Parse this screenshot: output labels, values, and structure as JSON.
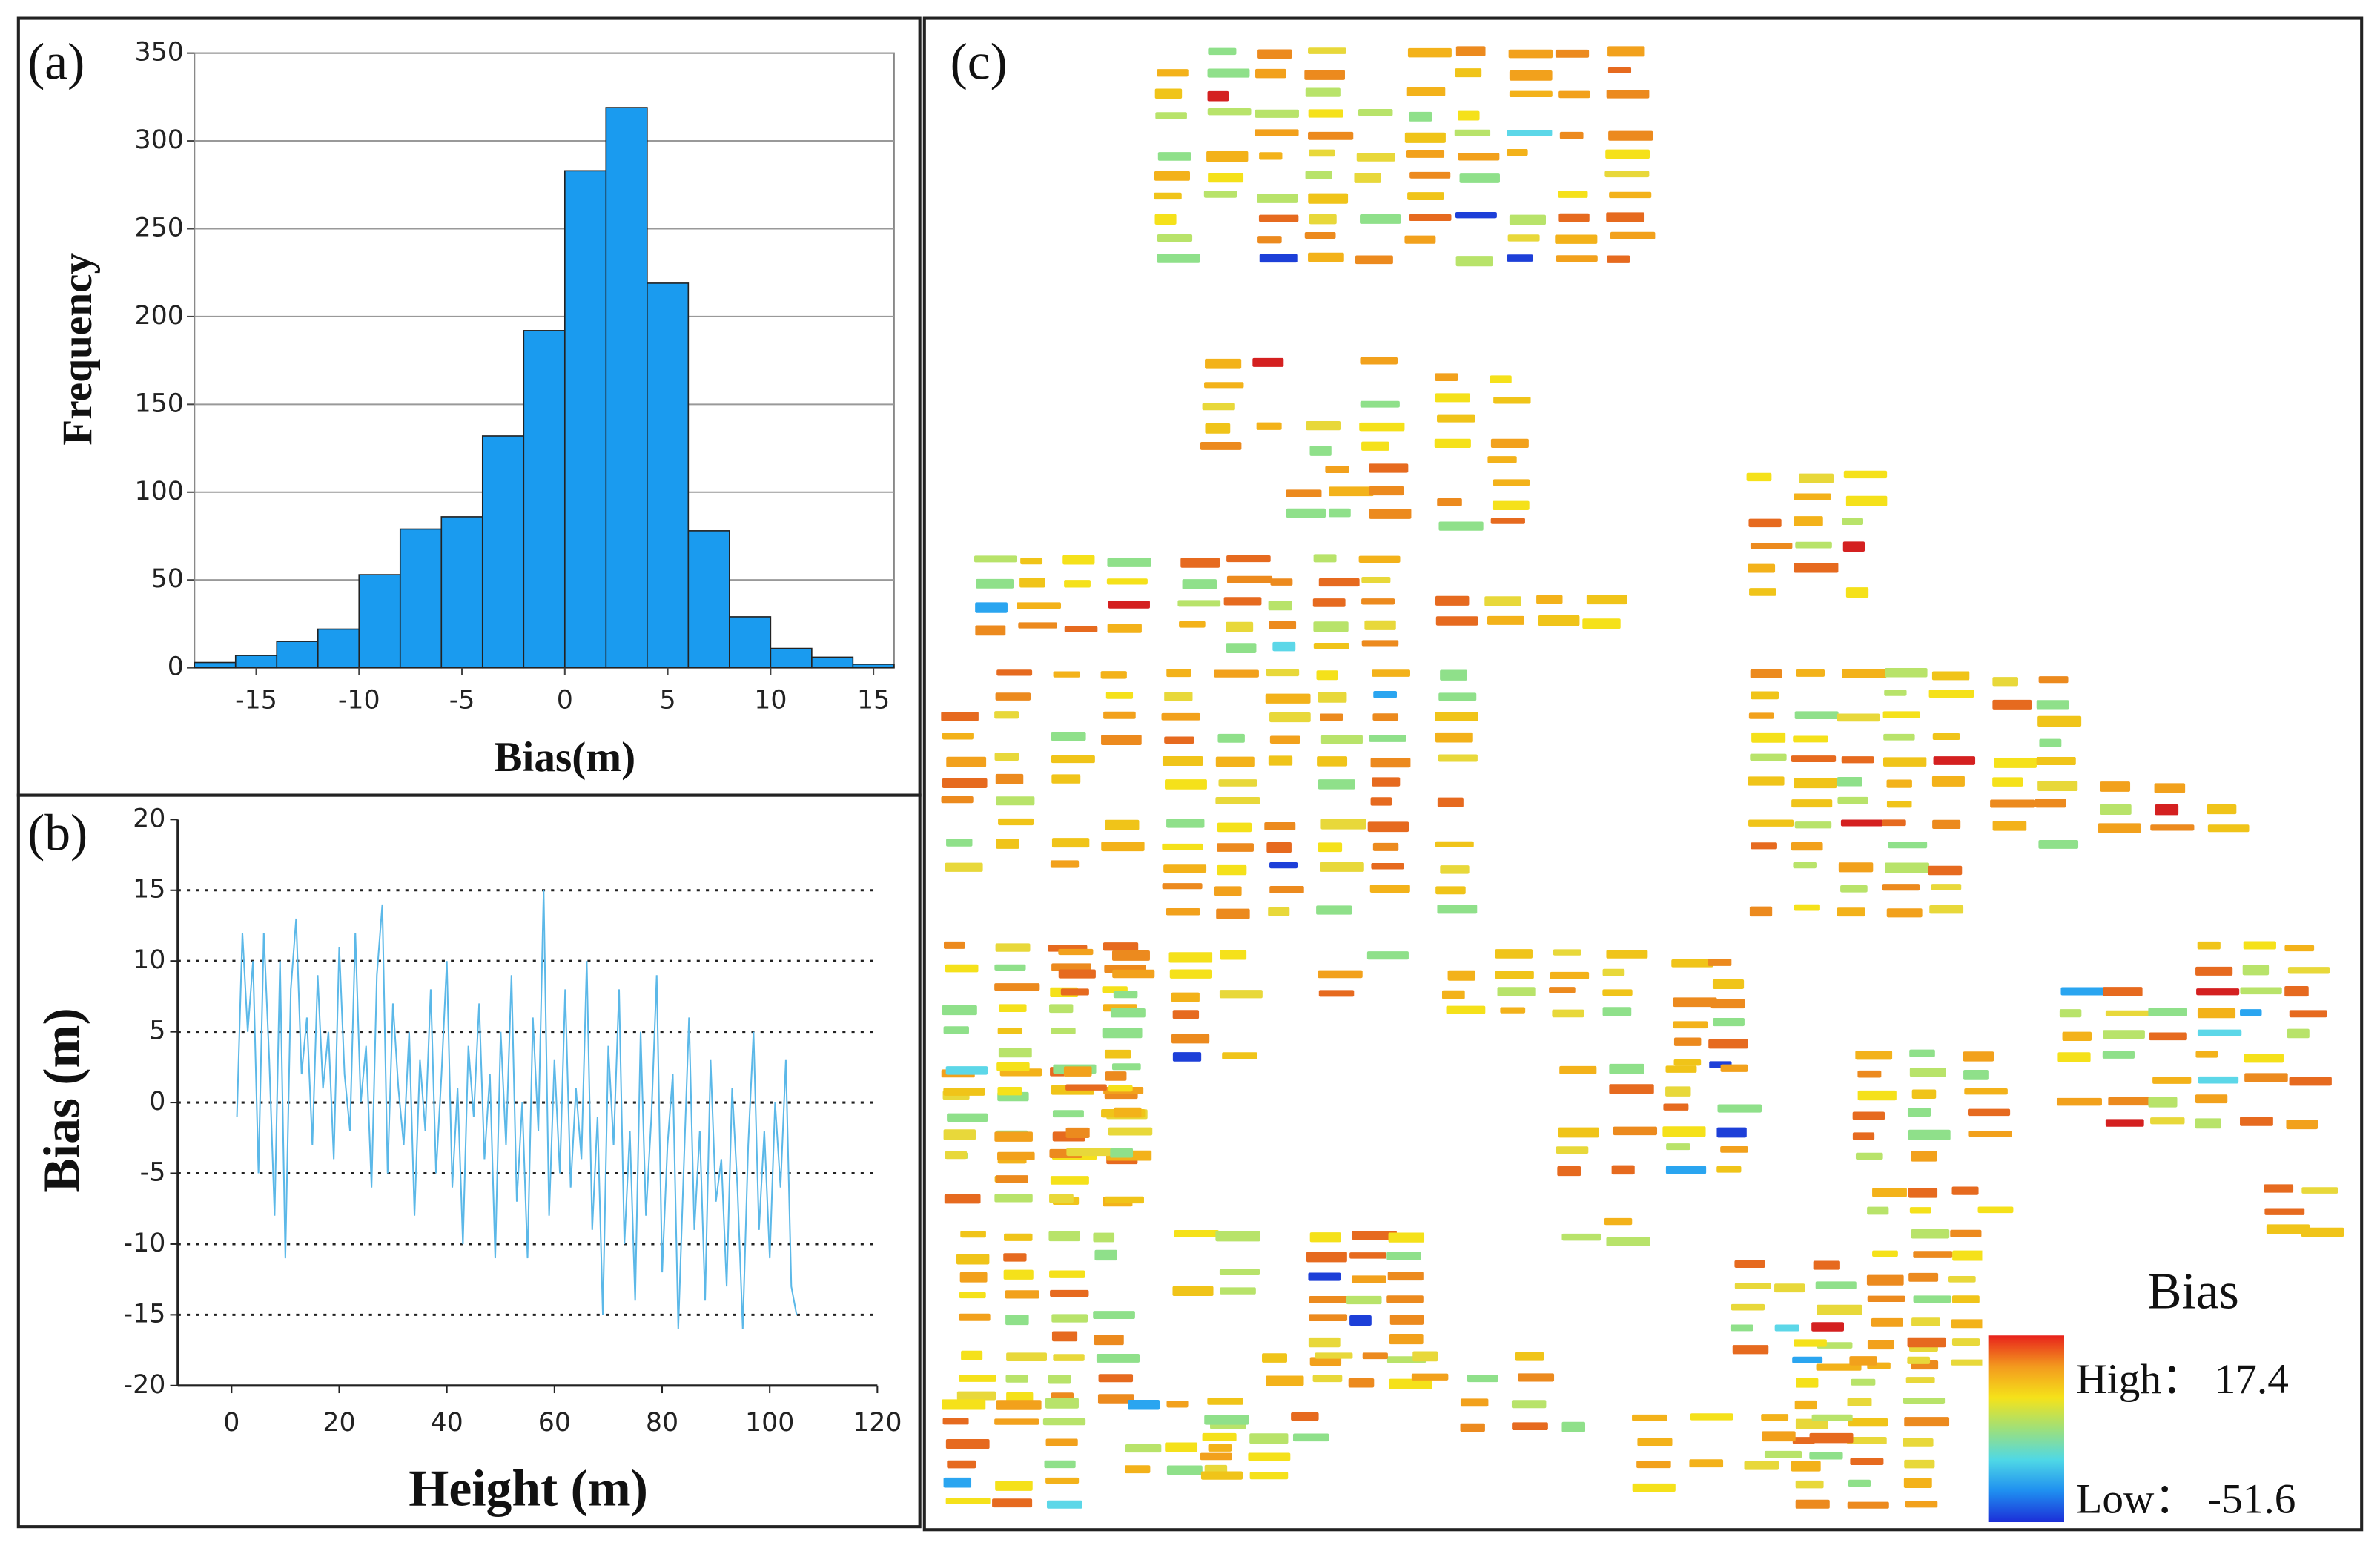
{
  "chart_data": [
    {
      "type": "histogram",
      "panel": "(a)",
      "x_label": "Bias(m)",
      "y_label": "Frequency",
      "bins": [
        -18,
        -16,
        -14,
        -12,
        -10,
        -8,
        -6,
        -4,
        -2,
        0,
        2,
        4,
        6,
        8,
        10,
        12,
        14,
        16
      ],
      "values": [
        3,
        7,
        15,
        22,
        53,
        79,
        86,
        132,
        192,
        283,
        319,
        219,
        78,
        29,
        11,
        6,
        2
      ],
      "color": "#1a9bef",
      "xlim": [
        -18,
        16
      ],
      "xticks": [
        -15,
        -10,
        -5,
        0,
        5,
        10,
        15
      ],
      "ylim": [
        0,
        350
      ],
      "yticks": [
        0,
        50,
        100,
        150,
        200,
        250,
        300,
        350
      ],
      "grid": true
    },
    {
      "type": "line",
      "panel": "(b)",
      "x_label": "Height (m)",
      "y_label": "Bias (m)",
      "x": [
        1,
        2,
        3,
        4,
        5,
        6,
        7,
        8,
        9,
        10,
        11,
        12,
        13,
        14,
        15,
        16,
        17,
        18,
        19,
        20,
        21,
        22,
        23,
        24,
        25,
        26,
        27,
        28,
        29,
        30,
        31,
        32,
        33,
        34,
        35,
        36,
        37,
        38,
        39,
        40,
        41,
        42,
        43,
        44,
        45,
        46,
        47,
        48,
        49,
        50,
        51,
        52,
        53,
        54,
        55,
        56,
        57,
        58,
        59,
        60,
        61,
        62,
        63,
        64,
        65,
        66,
        67,
        68,
        69,
        70,
        71,
        72,
        73,
        74,
        75,
        76,
        77,
        78,
        79,
        80,
        81,
        82,
        83,
        84,
        85,
        86,
        87,
        88,
        89,
        90,
        91,
        92,
        93,
        94,
        95,
        96,
        97,
        98,
        99,
        100,
        101,
        102,
        103,
        104,
        105
      ],
      "series": [
        {
          "name": "Bias",
          "color": "#5bb8e8",
          "values": [
            -1,
            12,
            5,
            10,
            -5,
            12,
            3,
            -8,
            10,
            -11,
            8,
            13,
            2,
            6,
            -3,
            9,
            1,
            5,
            -4,
            11,
            2,
            -2,
            12,
            0,
            4,
            -6,
            9,
            14,
            -5,
            7,
            1,
            -3,
            5,
            -8,
            3,
            -2,
            8,
            -5,
            2,
            10,
            -6,
            1,
            -10,
            4,
            -1,
            7,
            -4,
            2,
            -11,
            5,
            -3,
            9,
            -7,
            0,
            -11,
            6,
            -2,
            15,
            -8,
            3,
            -5,
            8,
            -6,
            1,
            -4,
            10,
            -9,
            -1,
            -15,
            4,
            -3,
            8,
            -10,
            -2,
            -14,
            5,
            -8,
            -1,
            9,
            -12,
            -3,
            2,
            -16,
            -5,
            6,
            -9,
            -2,
            -14,
            3,
            -7,
            -4,
            -13,
            1,
            -6,
            -16,
            -3,
            5,
            -9,
            -2,
            -11,
            0,
            -6,
            3,
            -13,
            -15
          ]
        }
      ],
      "xlim": [
        -10,
        120
      ],
      "xticks": [
        0,
        20,
        40,
        60,
        80,
        100,
        120
      ],
      "ylim": [
        -20,
        20
      ],
      "yticks": [
        -20,
        -15,
        -10,
        -5,
        0,
        5,
        10,
        15,
        20
      ],
      "grid": true
    },
    {
      "type": "map",
      "panel": "(c)",
      "legend": {
        "title": "Bias",
        "labels": [
          "High：  17.4",
          "Low：  -51.6"
        ]
      }
    }
  ]
}
